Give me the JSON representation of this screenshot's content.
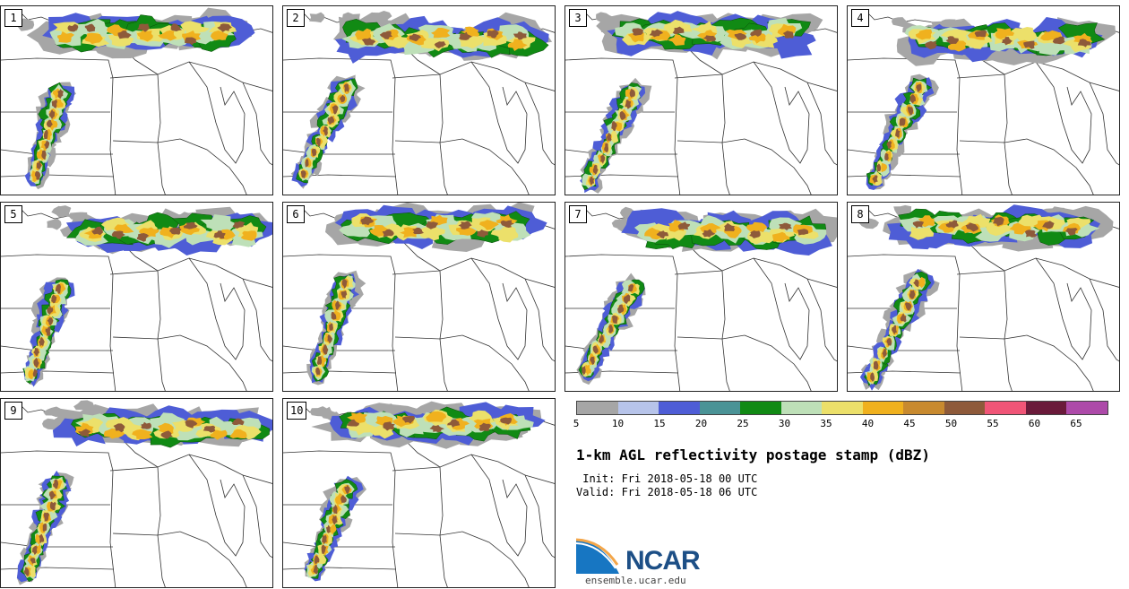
{
  "panels": [
    {
      "label": "1"
    },
    {
      "label": "2"
    },
    {
      "label": "3"
    },
    {
      "label": "4"
    },
    {
      "label": "5"
    },
    {
      "label": "6"
    },
    {
      "label": "7"
    },
    {
      "label": "8"
    },
    {
      "label": "9"
    },
    {
      "label": "10"
    }
  ],
  "legend": {
    "colors": [
      "#a6a6a6",
      "#b7c4ea",
      "#4e5dd6",
      "#4a9396",
      "#118a14",
      "#bee0b8",
      "#ece06a",
      "#f0b11e",
      "#c88a2f",
      "#8e5a3a",
      "#f05577",
      "#6a1a3a",
      "#ad4aa9"
    ],
    "ticks": [
      "5",
      "10",
      "15",
      "20",
      "25",
      "30",
      "35",
      "40",
      "45",
      "50",
      "55",
      "60",
      "65"
    ]
  },
  "title": "1-km AGL reflectivity postage stamp (dBZ)",
  "init_text": " Init: Fri 2018-05-18 00 UTC",
  "valid_text": "Valid: Fri 2018-05-18 06 UTC",
  "logo_text": "NCAR",
  "site": "ensemble.ucar.edu"
}
